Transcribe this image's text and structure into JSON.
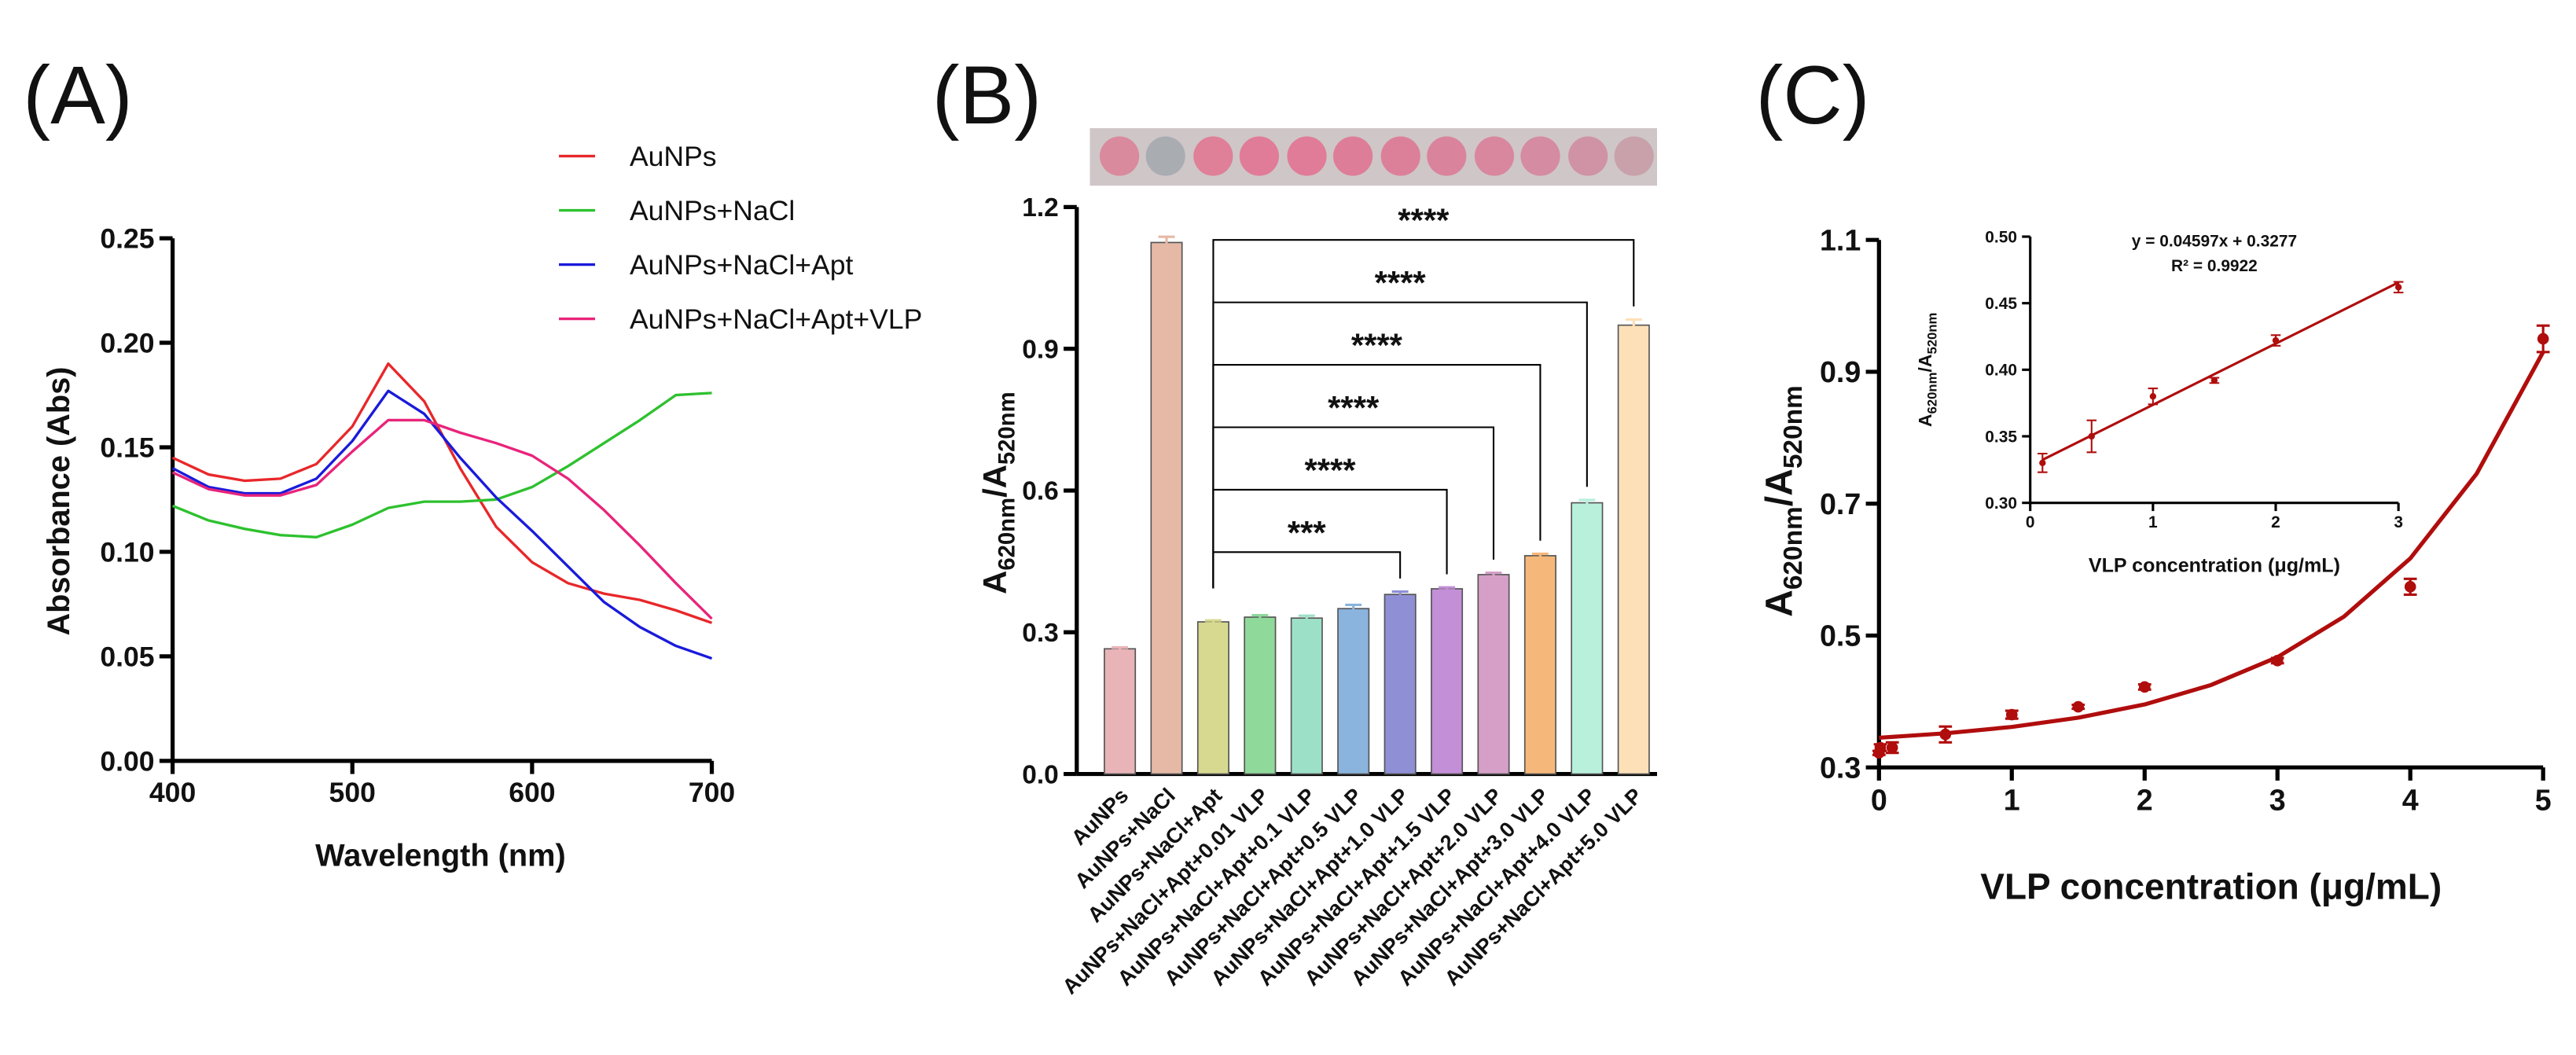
{
  "chart_data": [
    {
      "type": "line",
      "panel_label": "(A)",
      "xlabel": "Wavelength (nm)",
      "ylabel": "Absorbance (Abs)",
      "x": [
        400,
        420,
        440,
        460,
        480,
        500,
        520,
        540,
        560,
        580,
        600,
        620,
        640,
        660,
        680,
        700
      ],
      "xlim": [
        400,
        700
      ],
      "xticks": [
        400,
        500,
        600,
        700
      ],
      "ylim": [
        0,
        0.25
      ],
      "yticks": [
        {
          "value": 0,
          "label": "0.00"
        },
        0.05,
        {
          "value": 0.1,
          "label": "0.10"
        },
        0.15,
        {
          "value": 0.2,
          "label": "0.20"
        },
        0.25
      ],
      "series": [
        {
          "name": "AuNPs",
          "color": "#e8272a",
          "values": [
            0.145,
            0.137,
            0.134,
            0.135,
            0.142,
            0.16,
            0.19,
            0.172,
            0.14,
            0.112,
            0.095,
            0.085,
            0.08,
            0.077,
            0.072,
            0.066
          ]
        },
        {
          "name": "AuNPs+NaCl",
          "color": "#2ec12e",
          "values": [
            0.122,
            0.115,
            0.111,
            0.108,
            0.107,
            0.113,
            0.121,
            0.124,
            0.124,
            0.125,
            0.131,
            0.141,
            0.152,
            0.163,
            0.175,
            0.176
          ]
        },
        {
          "name": "AuNPs+NaCl+Apt",
          "color": "#1a1adb",
          "values": [
            0.14,
            0.131,
            0.128,
            0.128,
            0.135,
            0.153,
            0.177,
            0.166,
            0.145,
            0.126,
            0.11,
            0.093,
            0.076,
            0.064,
            0.055,
            0.049
          ]
        },
        {
          "name": "AuNPs+NaCl+Apt+VLP",
          "color": "#e8247a",
          "values": [
            0.138,
            0.13,
            0.127,
            0.127,
            0.132,
            0.148,
            0.163,
            0.163,
            0.157,
            0.152,
            0.146,
            0.135,
            0.12,
            0.103,
            0.085,
            0.068
          ]
        }
      ]
    },
    {
      "type": "bar",
      "panel_label": "(B)",
      "ylabel": [
        "A",
        "620nm",
        "/A",
        "520nm"
      ],
      "categories": [
        "AuNPs",
        "AuNPs+NaCl",
        "AuNPs+NaCl+Apt",
        "AuNPs+NaCl+Apt+0.01 VLP",
        "AuNPs+NaCl+Apt+0.1 VLP",
        "AuNPs+NaCl+Apt+0.5 VLP",
        "AuNPs+NaCl+Apt+1.0 VLP",
        "AuNPs+NaCl+Apt+1.5 VLP",
        "AuNPs+NaCl+Apt+2.0 VLP",
        "AuNPs+NaCl+Apt+3.0 VLP",
        "AuNPs+NaCl+Apt+4.0 VLP",
        "AuNPs+NaCl+Apt+5.0 VLP"
      ],
      "values": [
        0.265,
        1.125,
        0.322,
        0.332,
        0.33,
        0.35,
        0.38,
        0.392,
        0.422,
        0.462,
        0.574,
        0.95
      ],
      "errors": [
        0.003,
        0.012,
        0.003,
        0.004,
        0.005,
        0.008,
        0.006,
        0.003,
        0.004,
        0.004,
        0.006,
        0.012
      ],
      "colors": [
        "#e8b4b8",
        "#e5b9a5",
        "#d6d98f",
        "#8fd99b",
        "#9de0c8",
        "#8ab4de",
        "#8f8fd6",
        "#c38fd6",
        "#d69fc8",
        "#f6b87a",
        "#b8f0dc",
        "#fde0b8"
      ],
      "ylim": [
        0,
        1.2
      ],
      "yticks": [
        {
          "value": 0,
          "label": "0.0"
        },
        0.3,
        0.6,
        0.9,
        1.2
      ],
      "annotations": [
        {
          "from": 2,
          "to": 6,
          "label": "***"
        },
        {
          "from": 2,
          "to": 7,
          "label": "****"
        },
        {
          "from": 2,
          "to": 8,
          "label": "****"
        },
        {
          "from": 2,
          "to": 9,
          "label": "****"
        },
        {
          "from": 2,
          "to": 10,
          "label": "****"
        },
        {
          "from": 2,
          "to": 11,
          "label": "****"
        }
      ]
    },
    {
      "type": "scatter",
      "panel_label": "(C)",
      "xlabel": "VLP concentration (μg/mL)",
      "ylabel": [
        "A",
        "620nm",
        "/A",
        "520nm"
      ],
      "x": [
        0,
        0.01,
        0.1,
        0.5,
        1,
        1.5,
        2,
        3,
        4,
        5
      ],
      "values": [
        0.322,
        0.33,
        0.33,
        0.35,
        0.38,
        0.392,
        0.422,
        0.462,
        0.574,
        0.95
      ],
      "errors": [
        0.003,
        0.005,
        0.008,
        0.012,
        0.006,
        0.003,
        0.004,
        0.004,
        0.012,
        0.02
      ],
      "color": "#b00d0d",
      "xlim": [
        0,
        5
      ],
      "xticks": [
        0,
        1,
        2,
        3,
        4,
        5
      ],
      "ylim": [
        0.3,
        1.1
      ],
      "yticks": [
        0.3,
        0.5,
        0.7,
        0.9,
        1.1
      ],
      "fit": {
        "x": [
          0,
          0.5,
          1,
          1.5,
          2,
          2.5,
          3,
          3.5,
          4,
          4.5,
          5
        ],
        "values": [
          0.345,
          0.3517,
          0.3614,
          0.3754,
          0.3955,
          0.425,
          0.4672,
          0.5286,
          0.617,
          0.7455,
          0.93
        ]
      },
      "inset": {
        "xlabel": "VLP concentration (μg/mL)",
        "ylabel": [
          "A",
          "620nm",
          "/A",
          "520nm"
        ],
        "equation": "y = 0.04597x + 0.3277",
        "r2": "R² = 0.9922",
        "x": [
          0.1,
          0.5,
          1,
          1.5,
          2,
          3
        ],
        "values": [
          0.33,
          0.35,
          0.38,
          0.392,
          0.422,
          0.462
        ],
        "errors": [
          0.007,
          0.012,
          0.006,
          0.002,
          0.004,
          0.004
        ],
        "xlim": [
          0,
          3
        ],
        "xticks": [
          0,
          1,
          2,
          3
        ],
        "ylim": [
          0.3,
          0.5
        ],
        "yticks": [
          {
            "value": 0.3,
            "label": "0.30"
          },
          0.35,
          {
            "value": 0.4,
            "label": "0.40"
          },
          0.45,
          {
            "value": 0.5,
            "label": "0.50"
          }
        ],
        "fit": {
          "x": [
            0.1,
            3
          ],
          "values": [
            0.3323,
            0.4656
          ]
        }
      }
    }
  ]
}
